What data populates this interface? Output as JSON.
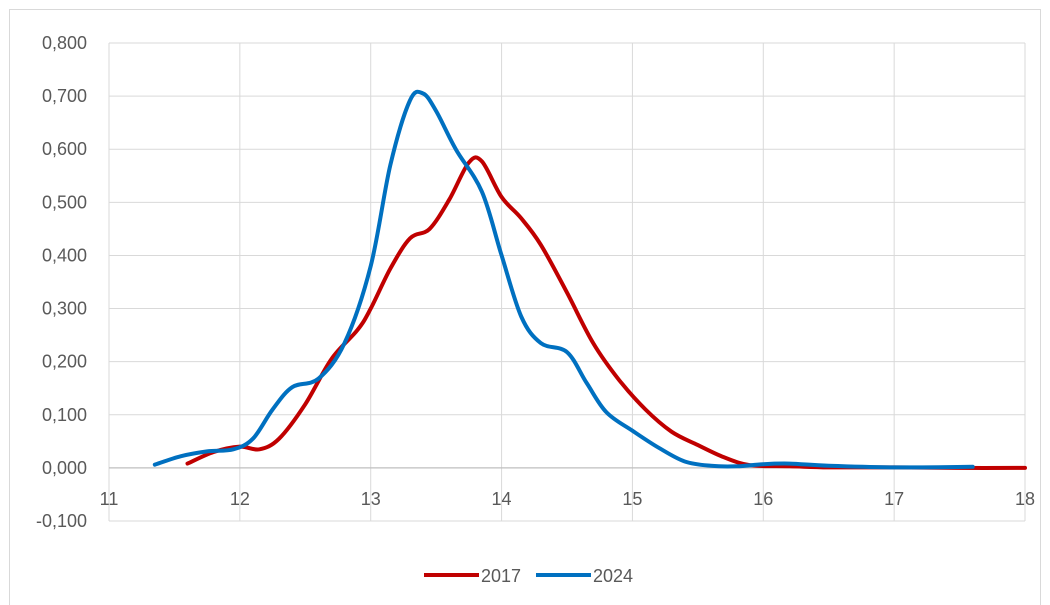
{
  "chart_data": {
    "type": "line",
    "title": "",
    "xlabel": "",
    "ylabel": "",
    "xlim": [
      11,
      18
    ],
    "ylim": [
      -0.1,
      0.8
    ],
    "x_ticks": [
      "11",
      "12",
      "13",
      "14",
      "15",
      "16",
      "17",
      "18"
    ],
    "y_ticks": [
      "-0,100",
      "0,000",
      "0,100",
      "0,200",
      "0,300",
      "0,400",
      "0,500",
      "0,600",
      "0,700",
      "0,800"
    ],
    "grid": "vertical and horizontal",
    "legend_position": "bottom",
    "series": [
      {
        "name": "2017",
        "color": "#c00000",
        "points": [
          [
            11.6,
            0.008
          ],
          [
            11.8,
            0.03
          ],
          [
            12.0,
            0.04
          ],
          [
            12.15,
            0.035
          ],
          [
            12.3,
            0.055
          ],
          [
            12.5,
            0.12
          ],
          [
            12.7,
            0.205
          ],
          [
            12.9,
            0.26
          ],
          [
            13.0,
            0.3
          ],
          [
            13.15,
            0.375
          ],
          [
            13.3,
            0.432
          ],
          [
            13.45,
            0.45
          ],
          [
            13.6,
            0.505
          ],
          [
            13.75,
            0.575
          ],
          [
            13.85,
            0.577
          ],
          [
            14.0,
            0.51
          ],
          [
            14.15,
            0.47
          ],
          [
            14.3,
            0.42
          ],
          [
            14.5,
            0.33
          ],
          [
            14.7,
            0.235
          ],
          [
            14.9,
            0.165
          ],
          [
            15.1,
            0.11
          ],
          [
            15.3,
            0.068
          ],
          [
            15.5,
            0.043
          ],
          [
            15.7,
            0.02
          ],
          [
            15.9,
            0.005
          ],
          [
            16.2,
            0.003
          ],
          [
            16.5,
            0.001
          ],
          [
            17.0,
            0.001
          ],
          [
            17.5,
            0.0
          ],
          [
            18.0,
            0.0
          ]
        ]
      },
      {
        "name": "2024",
        "color": "#0070c0",
        "points": [
          [
            11.35,
            0.006
          ],
          [
            11.55,
            0.022
          ],
          [
            11.75,
            0.031
          ],
          [
            11.95,
            0.035
          ],
          [
            12.1,
            0.055
          ],
          [
            12.25,
            0.11
          ],
          [
            12.4,
            0.152
          ],
          [
            12.6,
            0.168
          ],
          [
            12.8,
            0.235
          ],
          [
            13.0,
            0.38
          ],
          [
            13.15,
            0.57
          ],
          [
            13.3,
            0.692
          ],
          [
            13.4,
            0.705
          ],
          [
            13.5,
            0.672
          ],
          [
            13.65,
            0.6
          ],
          [
            13.85,
            0.52
          ],
          [
            14.0,
            0.4
          ],
          [
            14.15,
            0.285
          ],
          [
            14.3,
            0.235
          ],
          [
            14.5,
            0.218
          ],
          [
            14.65,
            0.16
          ],
          [
            14.8,
            0.105
          ],
          [
            15.0,
            0.07
          ],
          [
            15.2,
            0.038
          ],
          [
            15.4,
            0.012
          ],
          [
            15.6,
            0.004
          ],
          [
            15.8,
            0.003
          ],
          [
            16.0,
            0.007
          ],
          [
            16.2,
            0.008
          ],
          [
            16.5,
            0.004
          ],
          [
            17.0,
            0.001
          ],
          [
            17.6,
            0.002
          ]
        ]
      }
    ]
  }
}
